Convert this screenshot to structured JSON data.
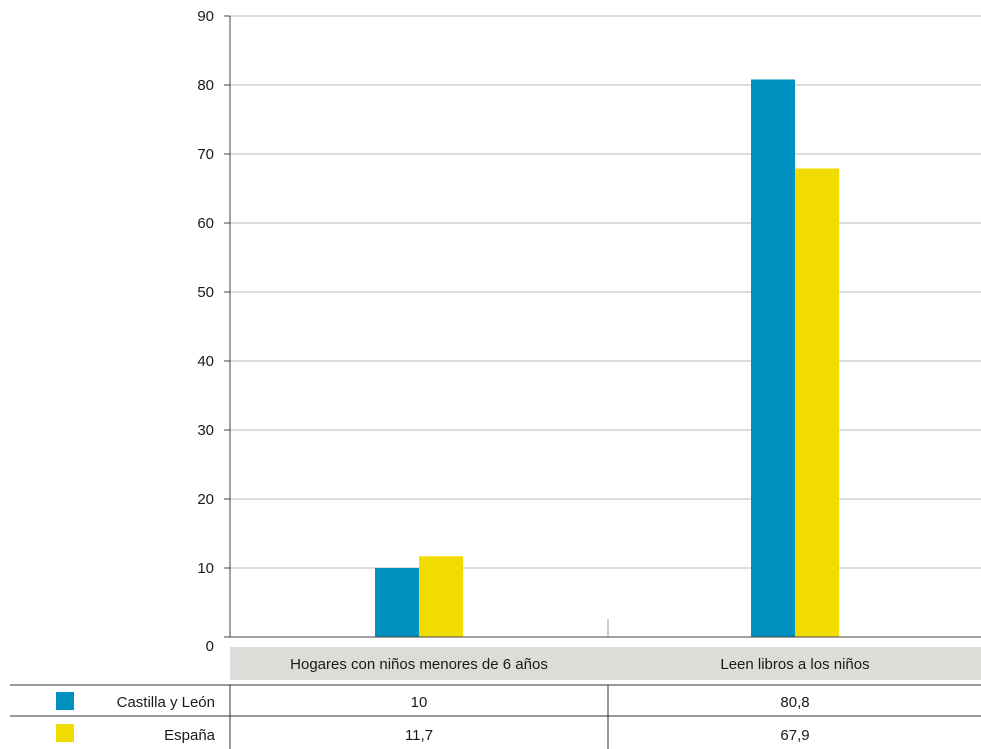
{
  "chart_data": {
    "type": "bar",
    "categories": [
      "Hogares con niños menores de 6 años",
      "Leen libros a los niños"
    ],
    "series": [
      {
        "name": "Castilla y León",
        "values": [
          10,
          80.8
        ],
        "value_labels": [
          "10",
          "80,8"
        ],
        "color": "#0090bf"
      },
      {
        "name": "España",
        "values": [
          11.7,
          67.9
        ],
        "value_labels": [
          "11,7",
          "67,9"
        ],
        "color": "#f0dc00"
      }
    ],
    "y_ticks": [
      "0",
      "10",
      "20",
      "30",
      "40",
      "50",
      "60",
      "70",
      "80",
      "90"
    ],
    "ylim": [
      0,
      90
    ],
    "grid": true,
    "legend": "data-table-below"
  }
}
